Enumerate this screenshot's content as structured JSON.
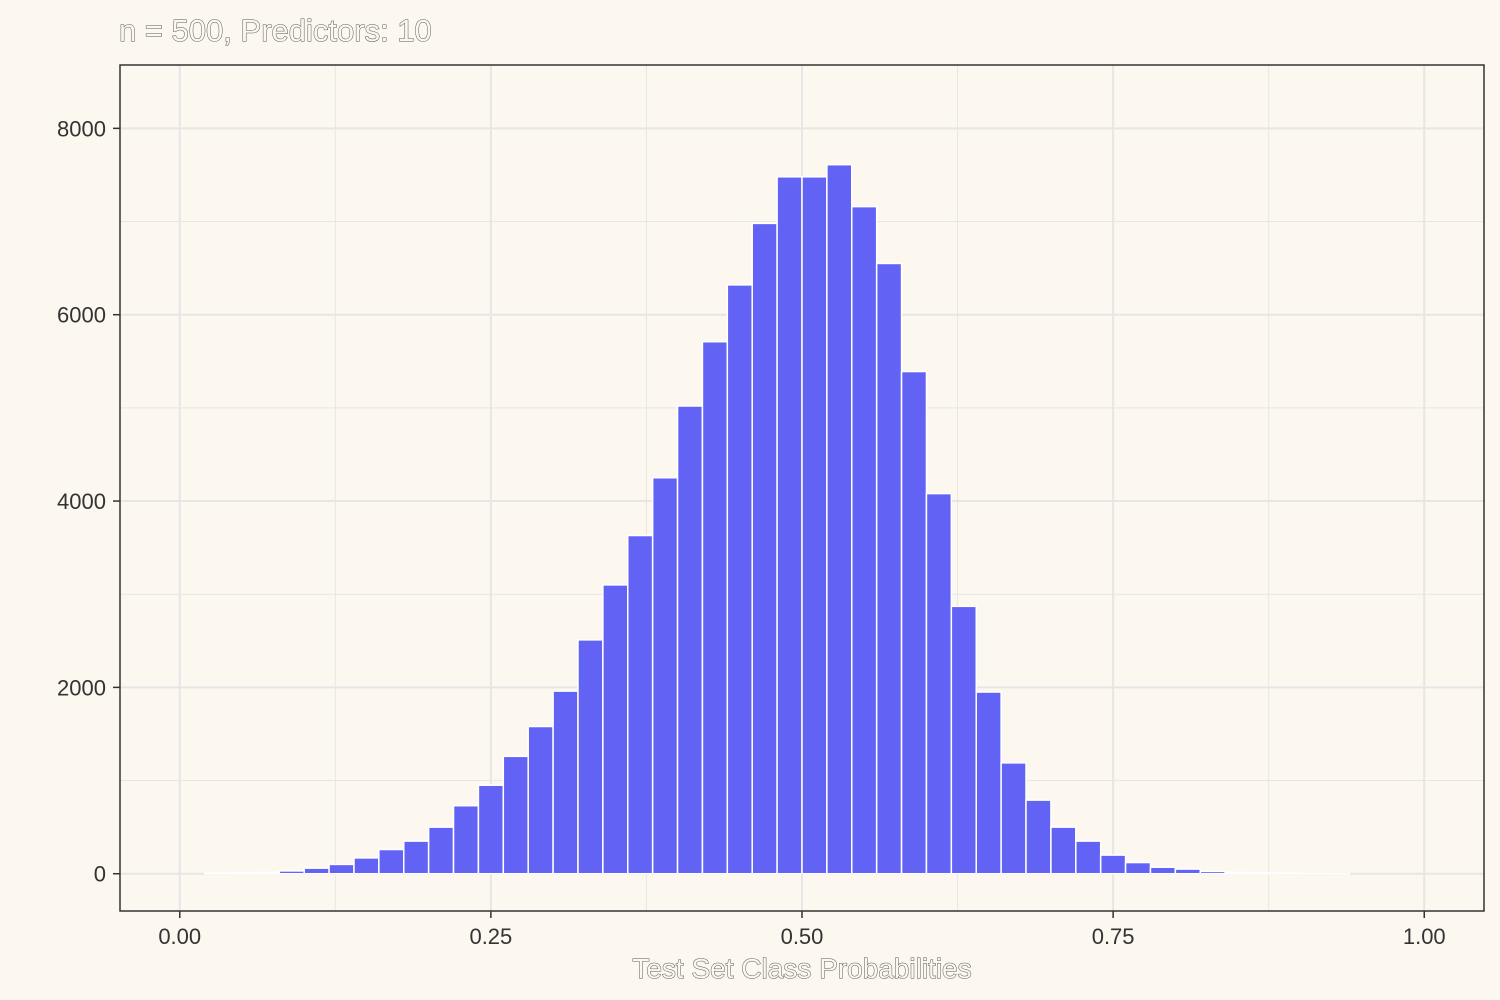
{
  "chart_data": {
    "type": "bar",
    "title": "n = 500, Predictors: 10",
    "xlabel": "Test Set Class Probabilities",
    "ylabel": "",
    "xlim": [
      -0.048,
      1.048
    ],
    "ylim": [
      -400,
      8680
    ],
    "x_ticks": [
      0.0,
      0.25,
      0.5,
      0.75,
      1.0
    ],
    "x_tick_labels": [
      "0.00",
      "0.25",
      "0.50",
      "0.75",
      "1.00"
    ],
    "y_ticks": [
      0,
      2000,
      4000,
      6000,
      8000
    ],
    "y_tick_labels": [
      "0",
      "2000",
      "4000",
      "6000",
      "8000"
    ],
    "grid": true,
    "bin_width": 0.02,
    "x": [
      0.03,
      0.05,
      0.07,
      0.09,
      0.11,
      0.13,
      0.15,
      0.17,
      0.19,
      0.21,
      0.23,
      0.25,
      0.27,
      0.29,
      0.31,
      0.33,
      0.35,
      0.37,
      0.39,
      0.41,
      0.43,
      0.45,
      0.47,
      0.49,
      0.51,
      0.53,
      0.55,
      0.57,
      0.59,
      0.61,
      0.63,
      0.65,
      0.67,
      0.69,
      0.71,
      0.73,
      0.75,
      0.77,
      0.79,
      0.81,
      0.83,
      0.85,
      0.87,
      0.89,
      0.91,
      0.93
    ],
    "values": [
      5,
      8,
      15,
      30,
      60,
      100,
      170,
      260,
      350,
      500,
      730,
      950,
      1260,
      1580,
      1960,
      2510,
      3100,
      3630,
      4250,
      5020,
      5710,
      6320,
      6980,
      7480,
      7480,
      7610,
      7160,
      6550,
      5390,
      4080,
      2870,
      1950,
      1190,
      790,
      500,
      350,
      200,
      120,
      70,
      50,
      25,
      15,
      10,
      5,
      3,
      2
    ],
    "colors": {
      "bar_fill": "#6262F5",
      "bar_stroke": "#FFFFFF",
      "panel_bg": "#FCF8F0",
      "grid": "#E6E6E6",
      "border": "#333333"
    }
  }
}
